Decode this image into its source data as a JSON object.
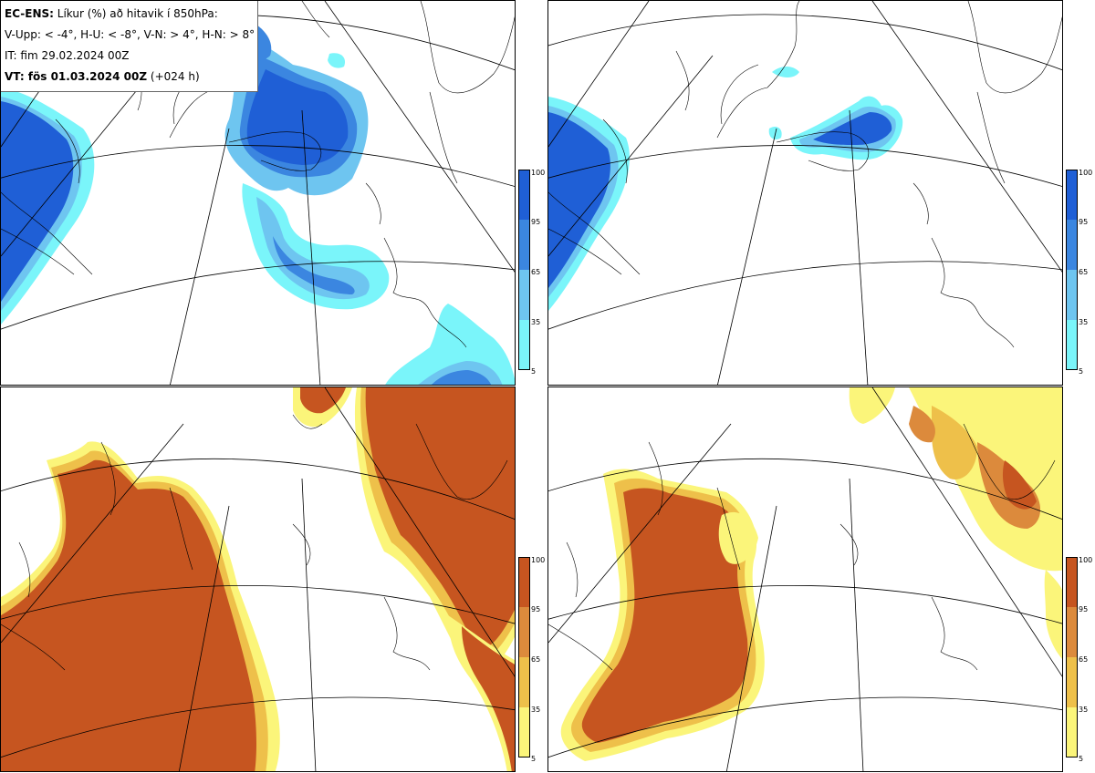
{
  "header": {
    "line1_bold": "EC-ENS:",
    "line1_rest": " Líkur (%) að hitavik í 850hPa:",
    "line2": "V-Upp: < -4°, H-U: < -8°, V-N: > 4°, H-N: > 8°",
    "line3": "IT: fim 29.02.2024 00Z",
    "line4_bold": "VT: fös 01.03.2024 00Z",
    "line4_rest": " (+024 h)"
  },
  "panels": [
    {
      "name": "V-Upp",
      "threshold": "< -4°",
      "palette": "blue"
    },
    {
      "name": "H-U",
      "threshold": "< -8°",
      "palette": "blue"
    },
    {
      "name": "V-N",
      "threshold": "> 4°",
      "palette": "orange"
    },
    {
      "name": "H-N",
      "threshold": "> 8°",
      "palette": "orange"
    }
  ],
  "colorbar": {
    "ticks": [
      "100",
      "95",
      "65",
      "35",
      "5"
    ],
    "blue_colors": [
      "#1f5fd6",
      "#3b86e0",
      "#6ec5f0",
      "#7af5fa"
    ],
    "orange_colors": [
      "#c65520",
      "#dc8a3c",
      "#eec04a",
      "#fbf57a"
    ]
  },
  "colors": {
    "blue_dark": "#1f5fd6",
    "blue_mid": "#3b86e0",
    "blue_light": "#6ec5f0",
    "cyan": "#7af5fa",
    "orange_dark": "#c65520",
    "orange_mid": "#dc8a3c",
    "orange_light": "#eec04a",
    "yellow": "#fbf57a"
  }
}
